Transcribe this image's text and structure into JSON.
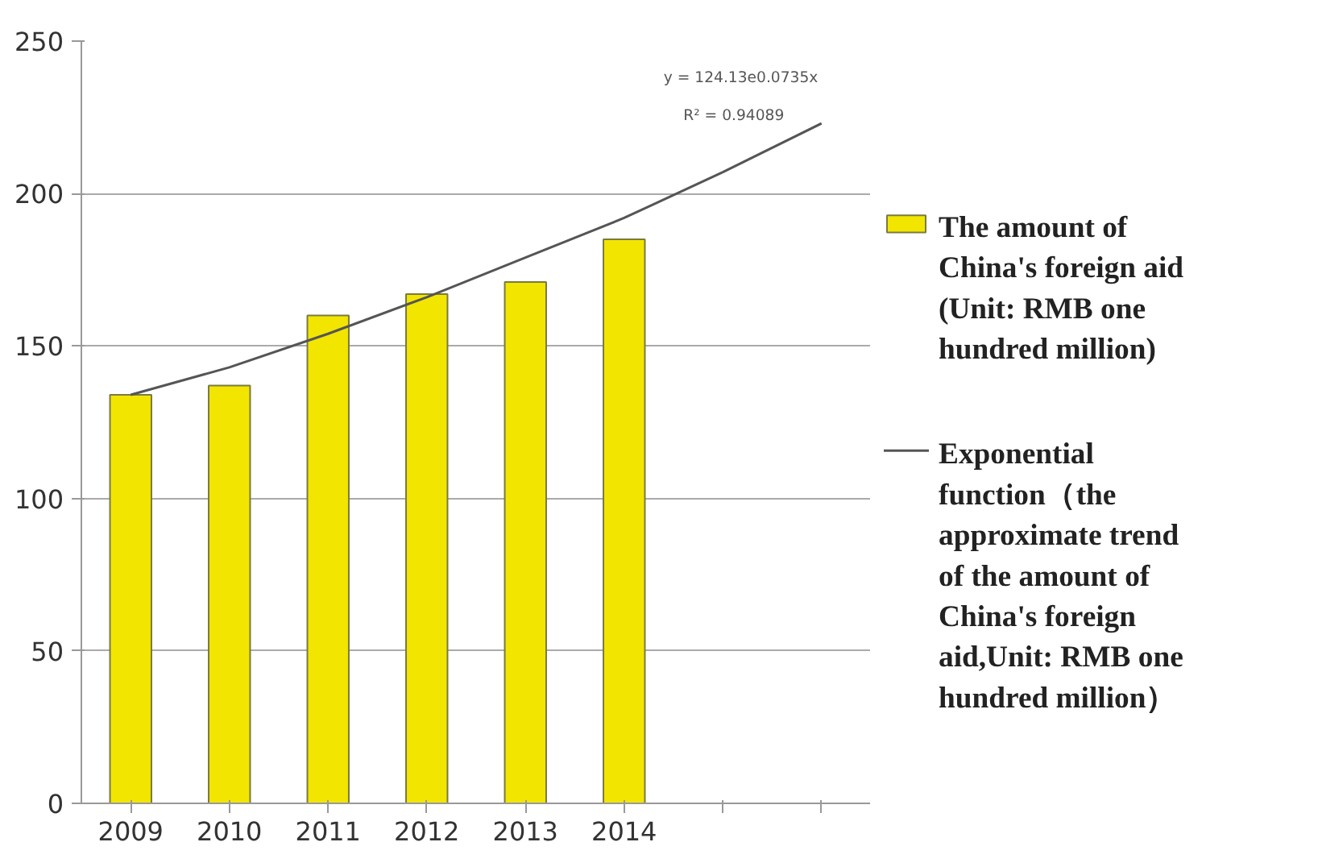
{
  "chart_data": {
    "type": "bar",
    "categories": [
      "2009",
      "2010",
      "2011",
      "2012",
      "2013",
      "2014",
      null,
      null
    ],
    "series": [
      {
        "name": "The amount of China's foreign aid (Unit: RMB one hundred million)",
        "color": "#f2e600",
        "values": [
          134,
          137,
          160,
          167,
          171,
          185,
          null,
          null
        ]
      },
      {
        "name": "Exponential function（the approximate trend of the amount of China's foreign aid,Unit: RMB one hundred million）",
        "type": "line",
        "color": "#555555",
        "values": [
          134,
          143,
          154,
          166,
          179,
          192,
          207,
          223
        ]
      }
    ],
    "annotations": [
      "y = 124.13e0.0735x",
      "R² = 0.94089"
    ],
    "ylim": [
      0,
      250
    ],
    "yticks": [
      0,
      50,
      100,
      150,
      200,
      250
    ],
    "grid": "y",
    "legend": "right"
  }
}
